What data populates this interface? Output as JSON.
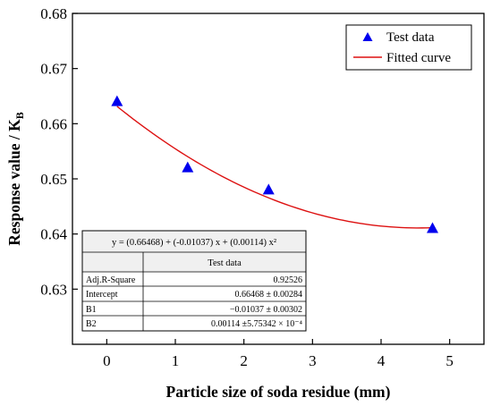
{
  "chart_data": {
    "type": "scatter",
    "title": "",
    "xlabel": "Particle size of soda residue (mm)",
    "ylabel_main": "Response value / K",
    "ylabel_sub": "B",
    "xlim": [
      -0.5,
      5.5
    ],
    "ylim": [
      0.62,
      0.68
    ],
    "x_ticks": [
      0,
      1,
      2,
      3,
      4,
      5
    ],
    "y_ticks": [
      0.63,
      0.64,
      0.65,
      0.66,
      0.67,
      0.68
    ],
    "x_tick_labels": [
      "0",
      "1",
      "2",
      "3",
      "4",
      "5"
    ],
    "y_tick_labels": [
      "0.63",
      "0.64",
      "0.65",
      "0.66",
      "0.67",
      "0.68"
    ],
    "grid": false,
    "legend_position": "top-right",
    "series": [
      {
        "name": "Test data",
        "kind": "scatter",
        "marker": "triangle",
        "color": "#0000ee",
        "x": [
          0.15,
          1.18,
          2.36,
          4.75
        ],
        "y": [
          0.664,
          0.652,
          0.648,
          0.641
        ]
      },
      {
        "name": "Fitted curve",
        "kind": "line",
        "color": "#dd1111",
        "coefficients": [
          0.66468,
          -0.01037,
          0.00114
        ],
        "x_range": [
          0.15,
          4.75
        ]
      }
    ],
    "fit_table": {
      "equation": "y = (0.66468) + (-0.01037) x + (0.00114) x²",
      "column_header": "Test data",
      "rows": [
        {
          "label": "Adj.R-Square",
          "value": "0.92526"
        },
        {
          "label": "Intercept",
          "value": "0.66468 ± 0.00284"
        },
        {
          "label": "B1",
          "value": "−0.01037 ± 0.00302"
        },
        {
          "label": "B2",
          "value": "0.00114 ±5.75342 × 10⁻⁴"
        }
      ]
    }
  }
}
